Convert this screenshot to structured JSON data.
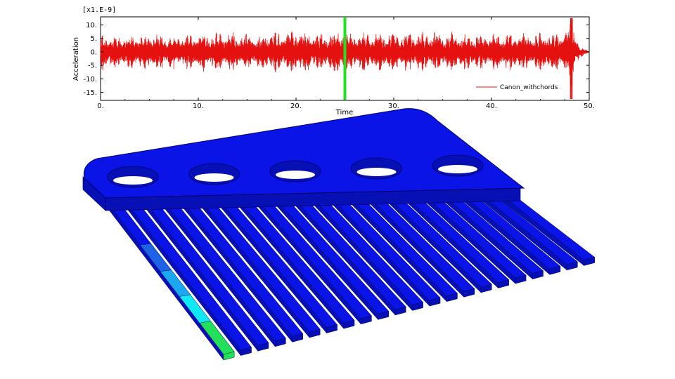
{
  "colors": {
    "signal": "#e51010",
    "cursor": "#22e022",
    "plate": "#0a14e6",
    "plate_edge": "#000066",
    "plate_side": "#0710b4",
    "hole": "#ffffff",
    "tine_hot_1": "#1e62e6",
    "tine_hot_2": "#1aa8f0",
    "tine_hot_3": "#10e8f4",
    "tine_hot_4": "#22e05a"
  },
  "chart_data": {
    "type": "line",
    "title": "",
    "xlabel": "Time",
    "ylabel": "Acceleration",
    "y_multiplier": "[x1.E-9]",
    "xlim": [
      0,
      50
    ],
    "ylim": [
      -18,
      13
    ],
    "x_ticks": [
      0,
      10,
      20,
      30,
      40,
      50
    ],
    "x_tick_labels": [
      "0.",
      "10.",
      "20.",
      "30.",
      "40.",
      "50."
    ],
    "y_ticks": [
      10,
      5,
      0,
      -5,
      -10,
      -15
    ],
    "y_tick_labels": [
      "10.",
      "5.",
      "0.",
      "-5.",
      "-10.",
      "-15."
    ],
    "grid": false,
    "legend_position": "bottom-right",
    "series": [
      {
        "name": "Canon_withchords",
        "color": "#e51010",
        "envelope_description": "dense oscillation",
        "envelope_x": [
          0,
          2,
          5,
          8,
          12,
          16,
          20,
          23,
          24.9,
          25.3,
          27,
          30,
          34,
          38,
          42,
          46,
          47.5,
          48.2,
          48.5,
          49,
          50
        ],
        "envelope_amp": [
          7.5,
          6.5,
          7.5,
          6.5,
          8,
          7,
          8.5,
          7.5,
          9,
          7,
          8,
          7.5,
          8,
          7,
          7.5,
          7.5,
          8,
          13,
          10,
          2.5,
          0.2
        ]
      }
    ],
    "cursor_x": 25
  },
  "model": {
    "plate_holes": 5,
    "tines": 22
  }
}
